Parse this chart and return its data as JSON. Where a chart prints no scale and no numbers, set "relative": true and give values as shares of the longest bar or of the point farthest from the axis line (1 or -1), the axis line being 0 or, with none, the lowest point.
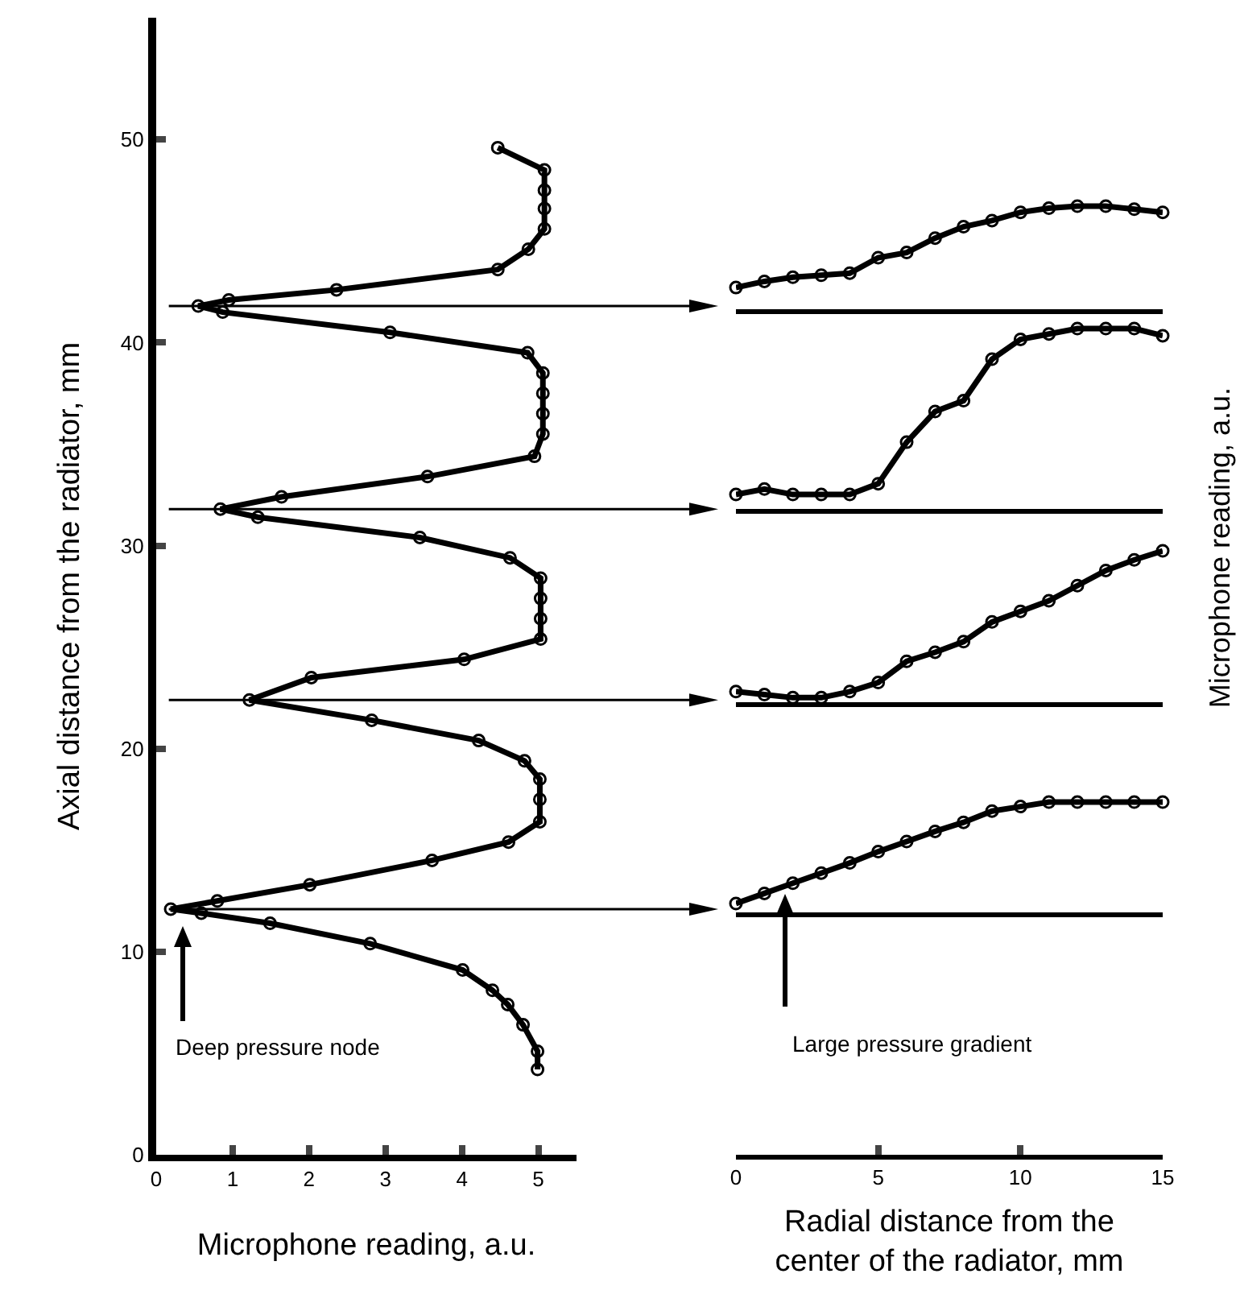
{
  "chart_data": [
    {
      "type": "line",
      "xlabel": "Microphone reading, a.u.",
      "ylabel": "Axial distance from the radiator, mm",
      "color": "#000000",
      "marker": "circle",
      "x": [
        4.47,
        5.08,
        5.08,
        5.08,
        5.08,
        4.87,
        4.47,
        2.36,
        0.95,
        0.55,
        0.87,
        3.06,
        4.86,
        5.06,
        5.06,
        5.06,
        5.06,
        4.95,
        3.55,
        1.64,
        0.84,
        1.33,
        3.45,
        4.63,
        5.03,
        5.03,
        5.03,
        5.03,
        4.03,
        2.03,
        1.22,
        2.82,
        4.22,
        4.82,
        5.02,
        5.02,
        5.02,
        4.61,
        3.61,
        2.01,
        0.8,
        0.19,
        0.59,
        1.49,
        2.8,
        4.01,
        4.4,
        4.6,
        4.8,
        4.99,
        4.99
      ],
      "values": [
        49.6,
        48.5,
        47.5,
        46.6,
        45.6,
        44.6,
        43.6,
        42.6,
        42.1,
        41.8,
        41.5,
        40.5,
        39.5,
        38.5,
        37.5,
        36.5,
        35.5,
        34.4,
        33.4,
        32.4,
        31.8,
        31.4,
        30.4,
        29.4,
        28.4,
        27.4,
        26.4,
        25.4,
        24.4,
        23.5,
        22.4,
        21.4,
        20.4,
        19.4,
        18.5,
        17.5,
        16.4,
        15.4,
        14.5,
        13.3,
        12.5,
        12.1,
        11.9,
        11.4,
        10.4,
        9.1,
        8.1,
        7.4,
        6.4,
        5.1,
        4.2
      ],
      "xlim": [
        0,
        5.5
      ],
      "xticks": [
        0,
        1,
        2,
        3,
        4,
        5
      ],
      "ylim": [
        0,
        56
      ],
      "yticks": [
        0,
        10,
        20,
        30,
        40,
        50
      ],
      "ref_lines": [
        {
          "axis": "y",
          "value": 41.8
        },
        {
          "axis": "y",
          "value": 31.8
        },
        {
          "axis": "y",
          "value": 22.4
        },
        {
          "axis": "y",
          "value": 12.1
        }
      ],
      "annotations": [
        "Deep pressure node"
      ]
    },
    {
      "type": "line",
      "ylabel": "Microphone reading, a.u.",
      "relative": true,
      "color": "#000000",
      "marker": "circle",
      "tick_labels": false,
      "xlim": [
        0,
        15
      ],
      "x": [
        0,
        1,
        2,
        3,
        4,
        5,
        6,
        7,
        8,
        9,
        10,
        11,
        12,
        13,
        14,
        15
      ],
      "values": [
        0.21,
        0.27,
        0.31,
        0.33,
        0.35,
        0.5,
        0.55,
        0.69,
        0.8,
        0.86,
        0.94,
        0.98,
        1,
        1,
        0.97,
        0.94
      ]
    },
    {
      "type": "line",
      "relative": true,
      "color": "#000000",
      "marker": "circle",
      "tick_labels": false,
      "xlim": [
        0,
        15
      ],
      "x": [
        0,
        1,
        2,
        3,
        4,
        5,
        6,
        7,
        8,
        9,
        10,
        11,
        12,
        13,
        14,
        15
      ],
      "values": [
        0.08,
        0.11,
        0.08,
        0.08,
        0.08,
        0.14,
        0.37,
        0.54,
        0.6,
        0.83,
        0.94,
        0.97,
        1,
        1,
        1,
        0.96
      ]
    },
    {
      "type": "line",
      "relative": true,
      "color": "#000000",
      "marker": "circle",
      "tick_labels": false,
      "xlim": [
        0,
        15
      ],
      "x": [
        0,
        1,
        2,
        3,
        4,
        5,
        6,
        7,
        8,
        9,
        10,
        11,
        12,
        13,
        14,
        15
      ],
      "values": [
        0.07,
        0.05,
        0.03,
        0.03,
        0.07,
        0.13,
        0.27,
        0.33,
        0.4,
        0.53,
        0.6,
        0.67,
        0.77,
        0.87,
        0.94,
        1
      ]
    },
    {
      "type": "line",
      "relative": true,
      "color": "#000000",
      "marker": "circle",
      "tick_labels": "x",
      "xlim": [
        0,
        15
      ],
      "xticks": [
        0,
        5,
        10,
        15
      ],
      "xlabel": "Radial distance from the\ncenter of the radiator, mm",
      "x": [
        0,
        1,
        2,
        3,
        4,
        5,
        6,
        7,
        8,
        9,
        10,
        11,
        12,
        13,
        14,
        15
      ],
      "values": [
        0.1,
        0.19,
        0.28,
        0.37,
        0.46,
        0.56,
        0.65,
        0.74,
        0.82,
        0.92,
        0.96,
        1,
        1,
        1,
        1,
        1
      ],
      "annotations": [
        "Large pressure gradient"
      ]
    }
  ]
}
